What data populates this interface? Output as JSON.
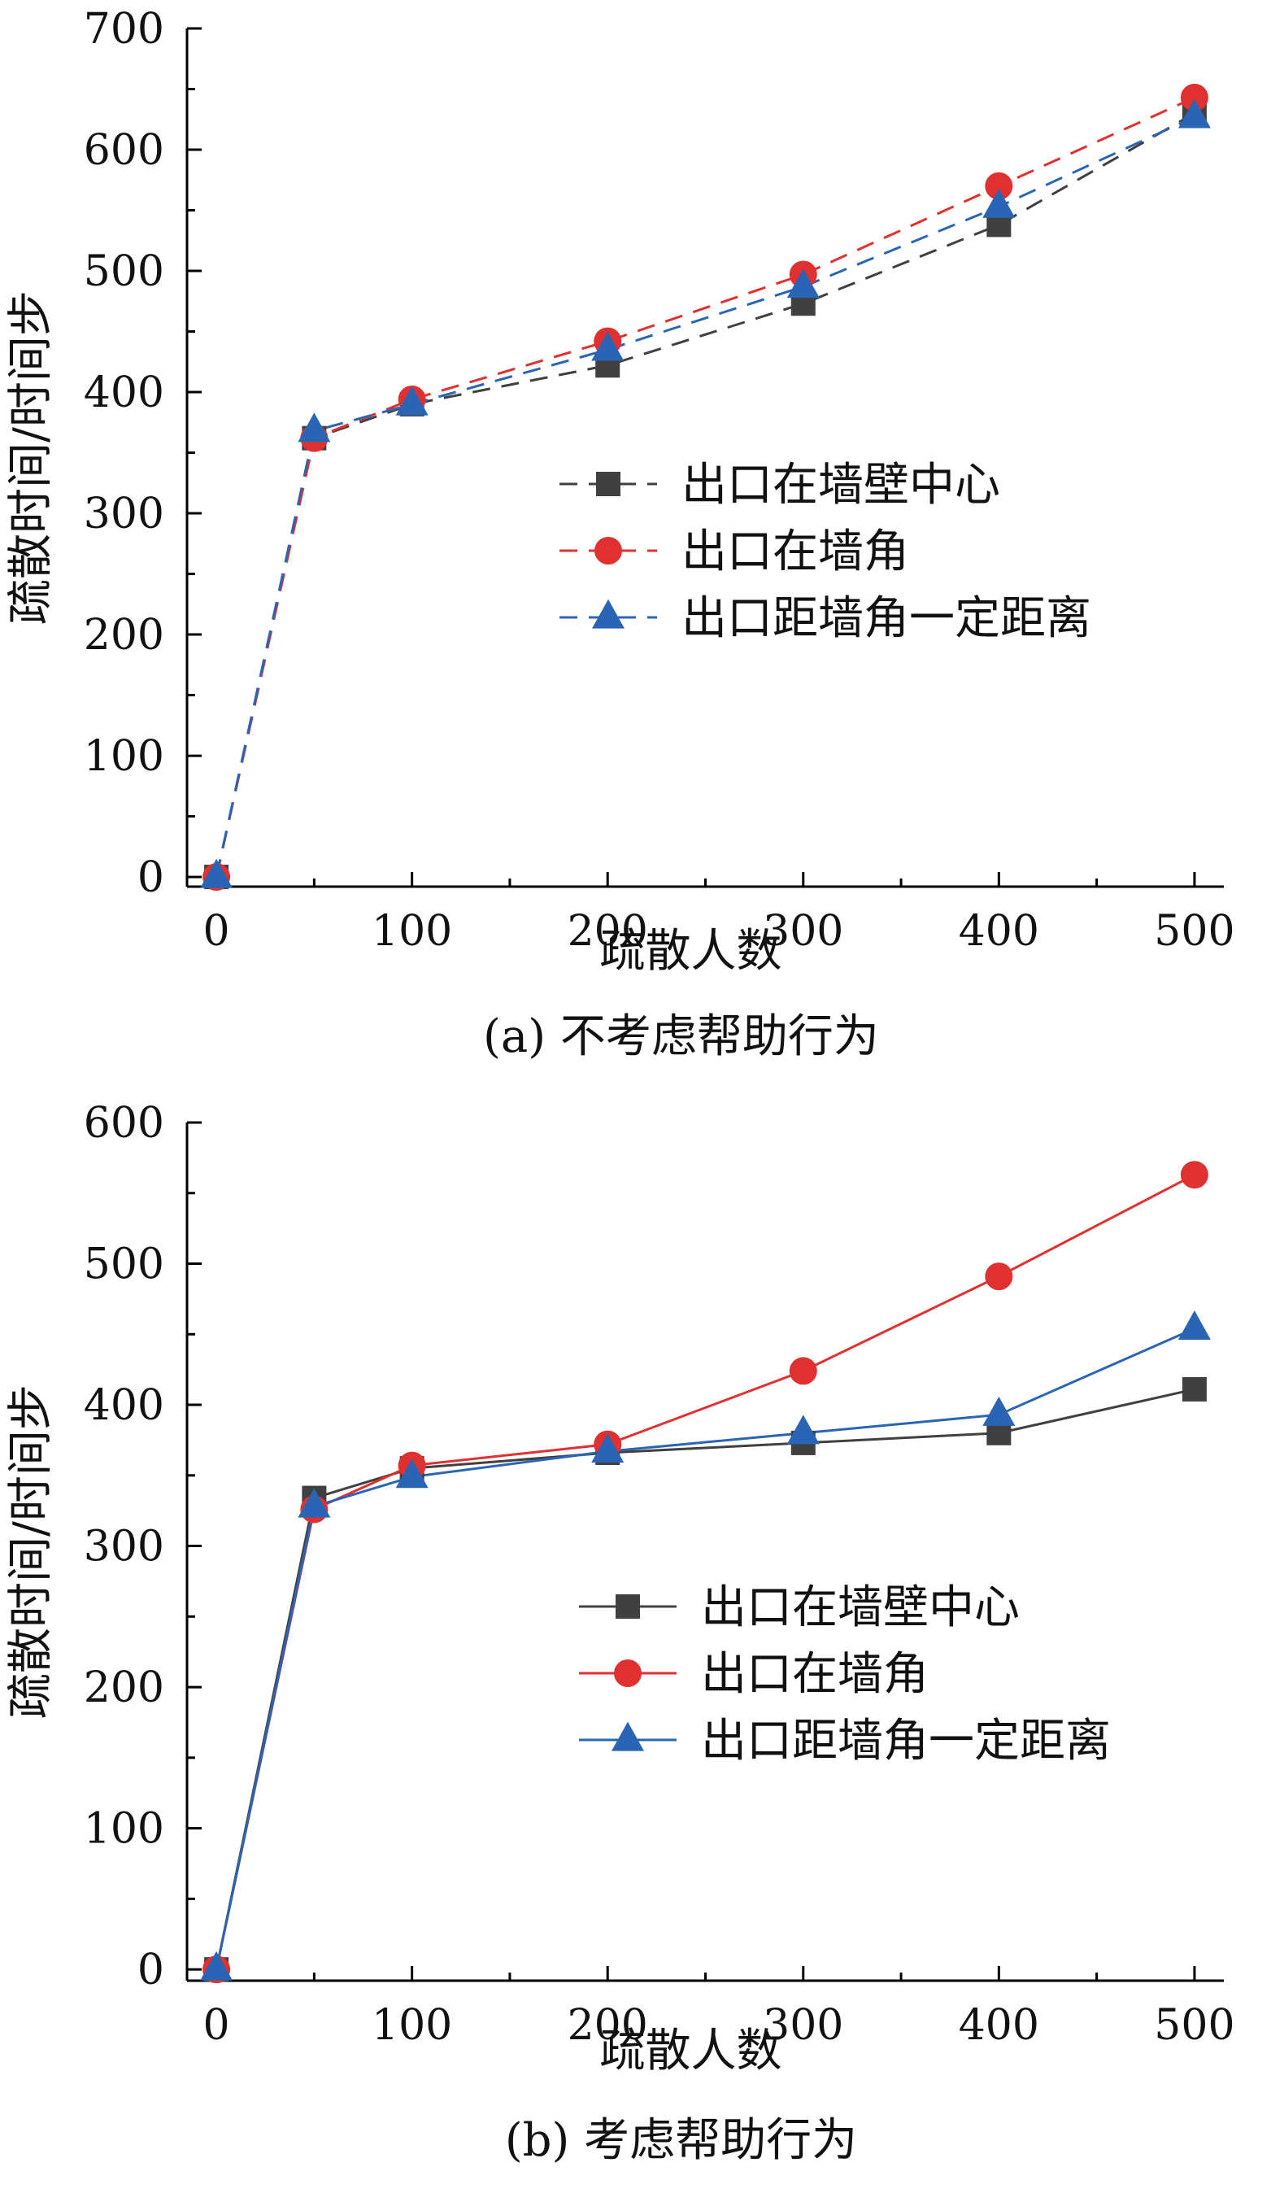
{
  "chart_data": [
    {
      "type": "line",
      "caption": "(a) 不考虑帮助行为",
      "xlabel": "疏散人数",
      "ylabel": "疏散时间/时间步",
      "xlim": [
        -15,
        515
      ],
      "ylim": [
        -8,
        700
      ],
      "x_ticks": [
        0,
        100,
        200,
        300,
        400,
        500
      ],
      "y_ticks": [
        0,
        100,
        200,
        300,
        400,
        500,
        600,
        700
      ],
      "grid": false,
      "legend_position": "center-right",
      "line_style": "dashed",
      "x": [
        0,
        50,
        100,
        200,
        300,
        400,
        500
      ],
      "series": [
        {
          "name": "出口在墙壁中心",
          "marker": "square",
          "color": "#404040",
          "values": [
            0,
            362,
            390,
            422,
            473,
            538,
            630
          ]
        },
        {
          "name": "出口在墙角",
          "marker": "circle",
          "color": "#e03030",
          "values": [
            0,
            362,
            394,
            442,
            497,
            570,
            643
          ]
        },
        {
          "name": "出口距墙角一定距离",
          "marker": "triangle",
          "color": "#2a65b5",
          "values": [
            0,
            368,
            390,
            435,
            487,
            553,
            627
          ]
        }
      ]
    },
    {
      "type": "line",
      "caption": "(b) 考虑帮助行为",
      "xlabel": "疏散人数",
      "ylabel": "疏散时间/时间步",
      "xlim": [
        -15,
        515
      ],
      "ylim": [
        -8,
        600
      ],
      "x_ticks": [
        0,
        100,
        200,
        300,
        400,
        500
      ],
      "y_ticks": [
        0,
        100,
        200,
        300,
        400,
        500,
        600
      ],
      "grid": false,
      "legend_position": "center-right",
      "line_style": "solid",
      "x": [
        0,
        50,
        100,
        200,
        300,
        400,
        500
      ],
      "series": [
        {
          "name": "出口在墙壁中心",
          "marker": "square",
          "color": "#404040",
          "values": [
            0,
            334,
            355,
            366,
            373,
            380,
            411
          ]
        },
        {
          "name": "出口在墙角",
          "marker": "circle",
          "color": "#e03030",
          "values": [
            0,
            326,
            357,
            372,
            424,
            491,
            563
          ]
        },
        {
          "name": "出口距墙角一定距离",
          "marker": "triangle",
          "color": "#2a65b5",
          "values": [
            0,
            328,
            349,
            367,
            380,
            393,
            454
          ]
        }
      ]
    }
  ]
}
